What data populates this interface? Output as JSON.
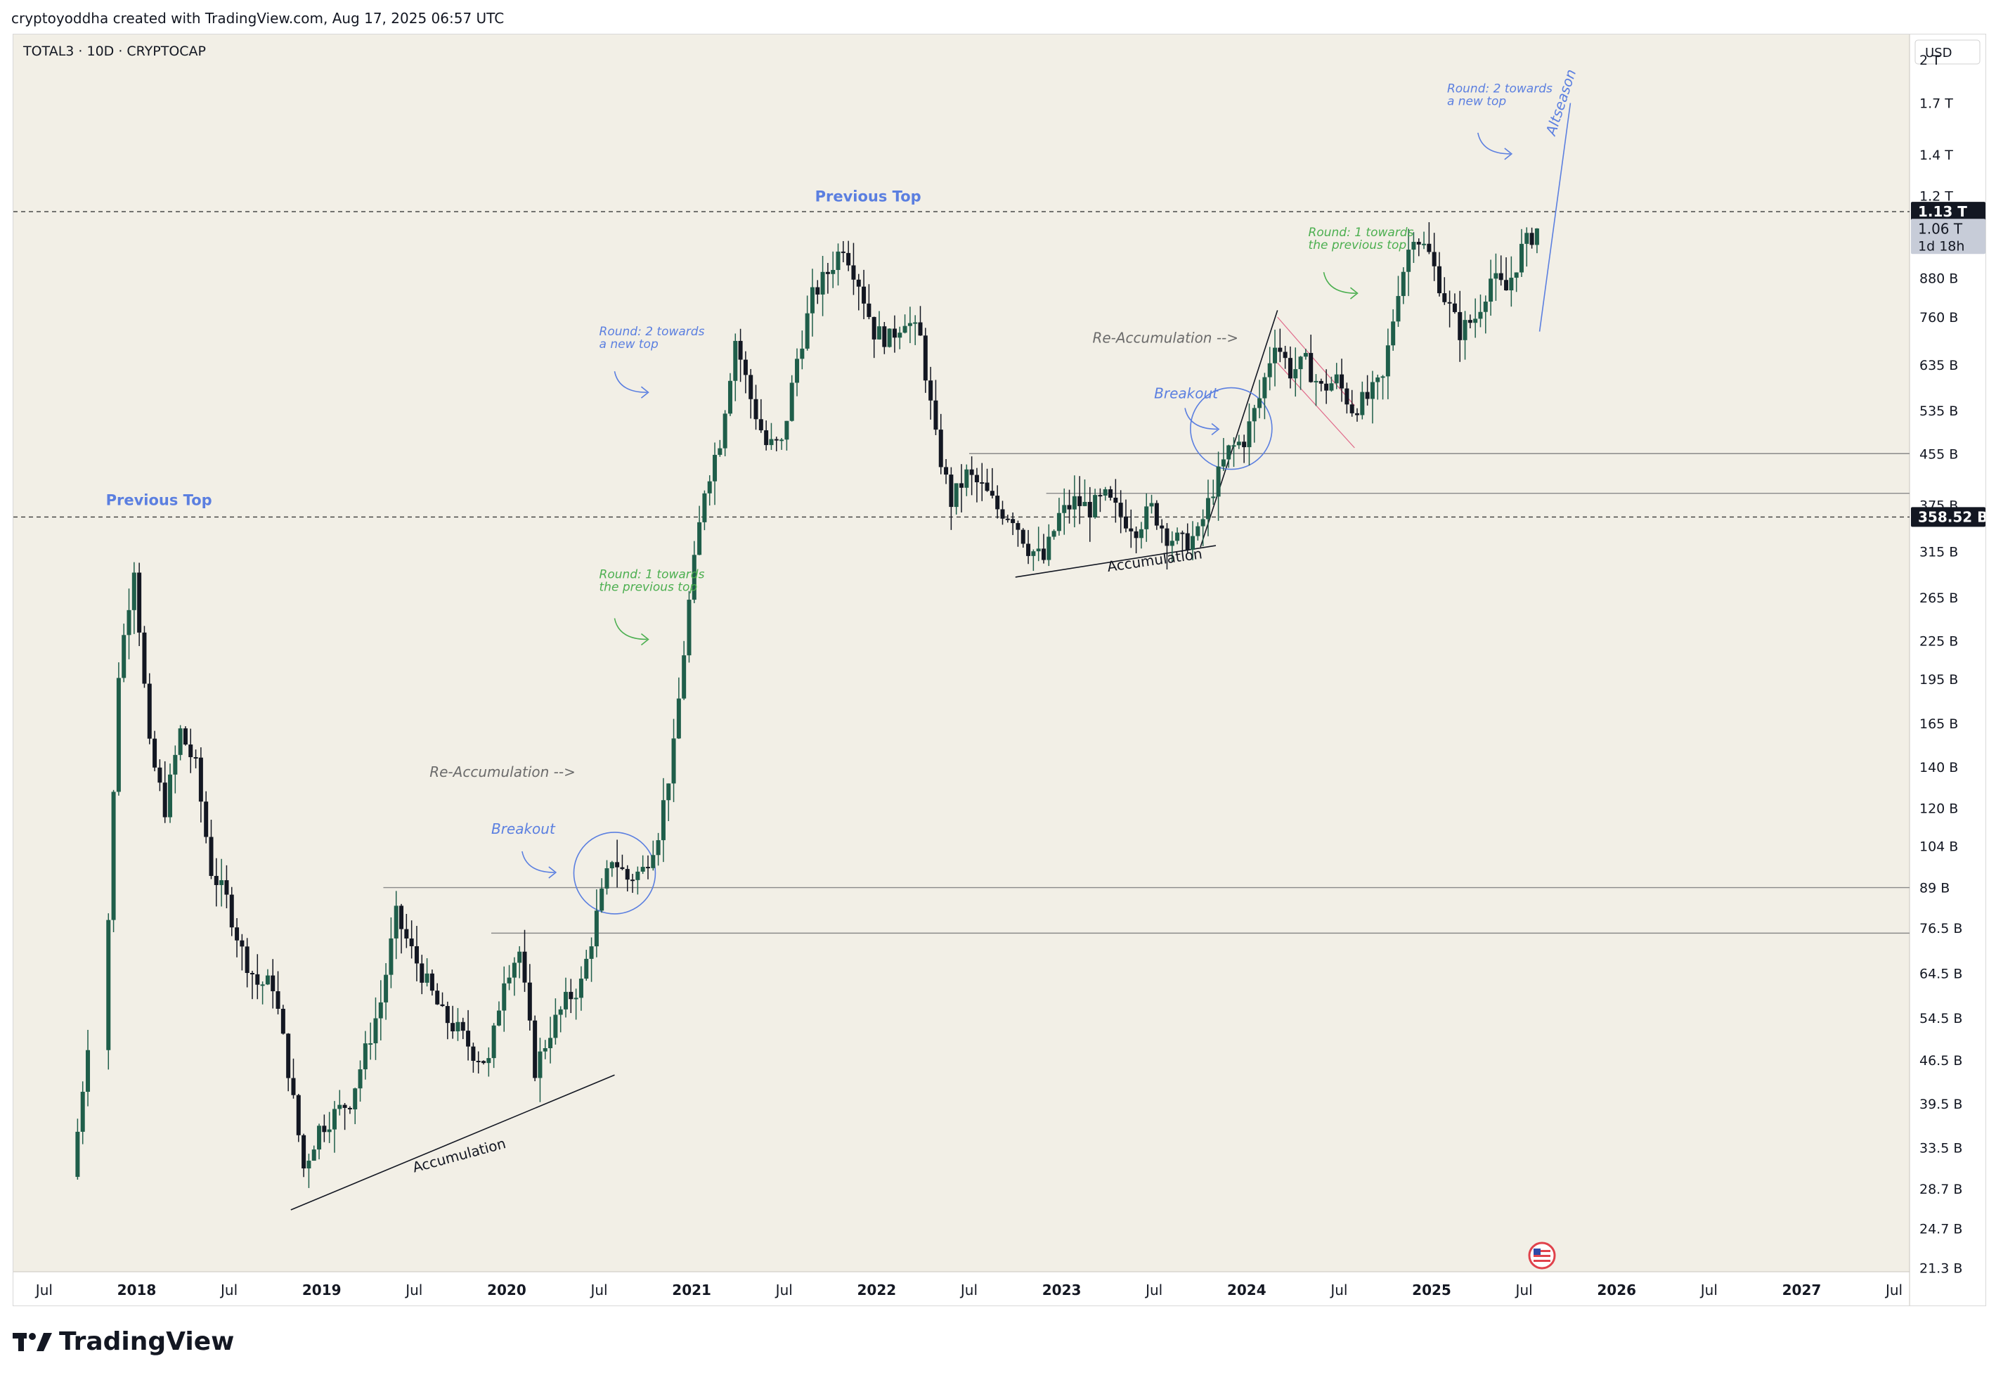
{
  "header": {
    "attribution": "cryptoyoddha created with TradingView.com, Aug 17, 2025 06:57 UTC"
  },
  "footer": {
    "brand": "TradingView"
  },
  "colors": {
    "background": "#f2efe6",
    "up": "#1f5e4a",
    "down": "#131722",
    "blue_note": "#5b7fe0",
    "green_note": "#4caf50",
    "gray_note": "#6b6b6b"
  },
  "chart_data": {
    "type": "candlestick",
    "symbol": "TOTAL3 · 10D · CRYPTOCAP",
    "currency": "USD",
    "y_scale": "log",
    "y_axis": {
      "ticks": [
        {
          "label": "2 T",
          "value": 2000
        },
        {
          "label": "1.7 T",
          "value": 1700
        },
        {
          "label": "1.4 T",
          "value": 1400
        },
        {
          "label": "1.2 T",
          "value": 1200
        },
        {
          "label": "880 B",
          "value": 880
        },
        {
          "label": "760 B",
          "value": 760
        },
        {
          "label": "635 B",
          "value": 635
        },
        {
          "label": "535 B",
          "value": 535
        },
        {
          "label": "455 B",
          "value": 455
        },
        {
          "label": "375 B",
          "value": 375
        },
        {
          "label": "315 B",
          "value": 315
        },
        {
          "label": "265 B",
          "value": 265
        },
        {
          "label": "225 B",
          "value": 225
        },
        {
          "label": "195 B",
          "value": 195
        },
        {
          "label": "165 B",
          "value": 165
        },
        {
          "label": "140 B",
          "value": 140
        },
        {
          "label": "120 B",
          "value": 120
        },
        {
          "label": "104 B",
          "value": 104
        },
        {
          "label": "89 B",
          "value": 89
        },
        {
          "label": "76.5 B",
          "value": 76.5
        },
        {
          "label": "64.5 B",
          "value": 64.5
        },
        {
          "label": "54.5 B",
          "value": 54.5
        },
        {
          "label": "46.5 B",
          "value": 46.5
        },
        {
          "label": "39.5 B",
          "value": 39.5
        },
        {
          "label": "33.5 B",
          "value": 33.5
        },
        {
          "label": "28.7 B",
          "value": 28.7
        },
        {
          "label": "24.7 B",
          "value": 24.7
        },
        {
          "label": "21.3 B",
          "value": 21.3
        }
      ],
      "ylim_billions": [
        21,
        2200
      ]
    },
    "x_axis": {
      "ticks": [
        {
          "label": "Jul",
          "value": "2017-07"
        },
        {
          "label": "2018",
          "value": "2018-01"
        },
        {
          "label": "Jul",
          "value": "2018-07"
        },
        {
          "label": "2019",
          "value": "2019-01"
        },
        {
          "label": "Jul",
          "value": "2019-07"
        },
        {
          "label": "2020",
          "value": "2020-01"
        },
        {
          "label": "Jul",
          "value": "2020-07"
        },
        {
          "label": "2021",
          "value": "2021-01"
        },
        {
          "label": "Jul",
          "value": "2021-07"
        },
        {
          "label": "2022",
          "value": "2022-01"
        },
        {
          "label": "Jul",
          "value": "2022-07"
        },
        {
          "label": "2023",
          "value": "2023-01"
        },
        {
          "label": "Jul",
          "value": "2023-07"
        },
        {
          "label": "2024",
          "value": "2024-01"
        },
        {
          "label": "Jul",
          "value": "2024-07"
        },
        {
          "label": "2025",
          "value": "2025-01"
        },
        {
          "label": "Jul",
          "value": "2025-07"
        },
        {
          "label": "2026",
          "value": "2026-01"
        },
        {
          "label": "Jul",
          "value": "2026-07"
        },
        {
          "label": "2027",
          "value": "2027-01"
        },
        {
          "label": "Jul",
          "value": "2027-07"
        }
      ],
      "xlim": [
        "2017-05",
        "2027-08"
      ]
    },
    "price_labels": [
      {
        "text": "1.13 T",
        "value": 1130,
        "style": "dark"
      },
      {
        "text": "1.06 T",
        "value": 1060,
        "style": "light",
        "countdown": "1d 18h"
      },
      {
        "text": "358.52 B",
        "value": 358.52,
        "style": "dark"
      }
    ],
    "horizontal_levels": [
      {
        "value": 1130,
        "style": "dashed",
        "from": "2017-05",
        "to": "2027-08"
      },
      {
        "value": 358.52,
        "style": "dashed",
        "from": "2017-05",
        "to": "2027-08"
      },
      {
        "value": 89,
        "style": "solid",
        "from": "2019-05",
        "to": "2027-08"
      },
      {
        "value": 75,
        "style": "solid",
        "from": "2019-12",
        "to": "2027-08"
      },
      {
        "value": 455,
        "style": "solid",
        "from": "2022-07",
        "to": "2027-08"
      },
      {
        "value": 392,
        "style": "solid",
        "from": "2022-12",
        "to": "2027-08"
      }
    ],
    "annotations": [
      {
        "id": "prev-top-2018",
        "text": "Previous Top",
        "date": "2017-11",
        "value": 375,
        "color": "blue_note",
        "bold": true
      },
      {
        "id": "prev-top-2021",
        "text": "Previous Top",
        "date": "2021-09",
        "value": 1175,
        "color": "blue_note",
        "bold": true
      },
      {
        "id": "round2-2020",
        "text": "Round: 2 towards",
        "text2": "a new top",
        "date": "2020-07",
        "value": 710,
        "color": "blue_note"
      },
      {
        "id": "round1-2020",
        "text": "Round: 1 towards",
        "text2": "the previous top",
        "date": "2020-07",
        "value": 285,
        "color": "green_note"
      },
      {
        "id": "reacc-2020",
        "text": "Re-Accumulation -->",
        "date": "2019-08",
        "value": 135,
        "color": "gray_note"
      },
      {
        "id": "breakout-2020",
        "text": "Breakout",
        "date": "2019-12",
        "value": 109,
        "color": "blue_note"
      },
      {
        "id": "accum-2019",
        "text": "Accumulation",
        "date": "2019-07",
        "value": 30.5,
        "color": "down",
        "rotate": -15
      },
      {
        "id": "round2-2025",
        "text": "Round: 2 towards",
        "text2": "a new top",
        "date": "2025-02",
        "value": 1770,
        "color": "blue_note"
      },
      {
        "id": "round1-2024",
        "text": "Round: 1 towards",
        "text2": "the previous top",
        "date": "2024-05",
        "value": 1030,
        "color": "green_note"
      },
      {
        "id": "reacc-2023",
        "text": "Re-Accumulation -->",
        "date": "2023-03",
        "value": 690,
        "color": "gray_note"
      },
      {
        "id": "breakout-2023",
        "text": "Breakout",
        "date": "2023-07",
        "value": 560,
        "color": "blue_note"
      },
      {
        "id": "accum-2023",
        "text": "Accumulation",
        "date": "2023-04",
        "value": 292,
        "color": "down",
        "rotate": -8
      },
      {
        "id": "altseason",
        "text": "Altseason",
        "date": "2025-09",
        "value": 1500,
        "color": "blue_note",
        "rotate": -72
      }
    ]
  }
}
